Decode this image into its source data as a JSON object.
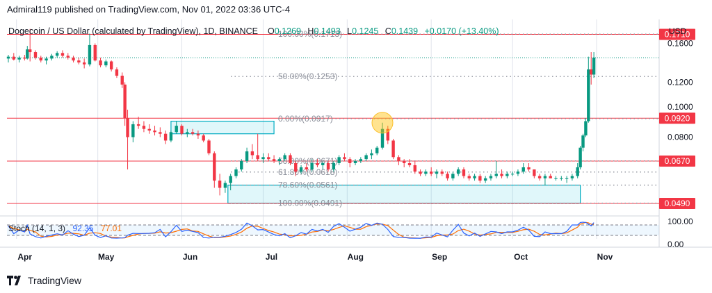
{
  "publisher": "Admiral119 published on TradingView.com, Nov 01, 2022 03:36 UTC-4",
  "footer": {
    "brand": "TradingView",
    "logo_icon": "tradingview-logo-icon"
  },
  "chart_data": {
    "type": "candlestick",
    "title": "Dogecoin / US Dollar (calculated by TradingView), 1D, BINANCE",
    "ohlc": {
      "o_label": "O",
      "o": "0.1269",
      "h_label": "H",
      "h": "0.1493",
      "l_label": "L",
      "l": "0.1245",
      "c_label": "C",
      "c": "0.1439",
      "change": "+0.0170 (+13.40%)"
    },
    "y_axis": {
      "unit": "USD",
      "scale": "log",
      "range": [
        0.049,
        0.175
      ],
      "ticks": [
        "0.1600",
        "0.1200",
        "0.1000",
        "0.0800"
      ]
    },
    "x_axis": {
      "ticks": [
        "Apr",
        "May",
        "Jun",
        "Jul",
        "Aug",
        "Sep",
        "Oct",
        "Nov"
      ]
    },
    "price_levels": [
      {
        "label": "0.1710",
        "value": 0.171,
        "color": "#f23645"
      },
      {
        "label": "0.0920",
        "value": 0.092,
        "color": "#f23645"
      },
      {
        "label": "0.0670",
        "value": 0.067,
        "color": "#f23645"
      },
      {
        "label": "0.0490",
        "value": 0.049,
        "color": "#f23645"
      }
    ],
    "fibonacci": [
      {
        "label": "100.00%(0.1713)",
        "value": 0.1713
      },
      {
        "label": "50.00%(0.1253)",
        "value": 0.1253
      },
      {
        "label": "0.00%(0.0917)",
        "value": 0.0917
      },
      {
        "label": "50.00%(0.0671)",
        "value": 0.0671
      },
      {
        "label": "61.80%(0.0618)",
        "value": 0.0618
      },
      {
        "label": "78.60%(0.0561)",
        "value": 0.0561
      },
      {
        "label": "100.00%(0.0491)",
        "value": 0.0491
      }
    ],
    "zones": [
      {
        "name": "supply-zone",
        "from": "2022-05-28",
        "to": "2022-07-05",
        "low": 0.082,
        "high": 0.09
      },
      {
        "name": "demand-zone",
        "from": "2022-06-18",
        "to": "2022-10-26",
        "low": 0.0491,
        "high": 0.0561
      }
    ],
    "highlight": {
      "date": "2022-08-14",
      "value": 0.089
    },
    "candles": [
      [
        "2022-03-29",
        0.143,
        0.147,
        0.139,
        0.145
      ],
      [
        "2022-03-31",
        0.145,
        0.149,
        0.141,
        0.142
      ],
      [
        "2022-04-02",
        0.142,
        0.146,
        0.139,
        0.144
      ],
      [
        "2022-04-04",
        0.144,
        0.147,
        0.141,
        0.143
      ],
      [
        "2022-04-05",
        0.143,
        0.157,
        0.142,
        0.153
      ],
      [
        "2022-04-06",
        0.153,
        0.178,
        0.14,
        0.15
      ],
      [
        "2022-04-08",
        0.15,
        0.152,
        0.142,
        0.144
      ],
      [
        "2022-04-10",
        0.144,
        0.146,
        0.139,
        0.141
      ],
      [
        "2022-04-12",
        0.141,
        0.145,
        0.137,
        0.143
      ],
      [
        "2022-04-14",
        0.143,
        0.148,
        0.141,
        0.146
      ],
      [
        "2022-04-16",
        0.146,
        0.151,
        0.144,
        0.149
      ],
      [
        "2022-04-18",
        0.149,
        0.152,
        0.144,
        0.146
      ],
      [
        "2022-04-20",
        0.146,
        0.149,
        0.142,
        0.144
      ],
      [
        "2022-04-22",
        0.144,
        0.146,
        0.139,
        0.141
      ],
      [
        "2022-04-24",
        0.141,
        0.144,
        0.137,
        0.139
      ],
      [
        "2022-04-26",
        0.139,
        0.143,
        0.133,
        0.137
      ],
      [
        "2022-04-28",
        0.137,
        0.172,
        0.135,
        0.158
      ],
      [
        "2022-04-30",
        0.158,
        0.16,
        0.14,
        0.141
      ],
      [
        "2022-05-02",
        0.141,
        0.144,
        0.134,
        0.136
      ],
      [
        "2022-05-04",
        0.136,
        0.142,
        0.134,
        0.14
      ],
      [
        "2022-05-06",
        0.14,
        0.141,
        0.13,
        0.132
      ],
      [
        "2022-05-08",
        0.132,
        0.134,
        0.124,
        0.126
      ],
      [
        "2022-05-10",
        0.126,
        0.129,
        0.115,
        0.118
      ],
      [
        "2022-05-11",
        0.118,
        0.12,
        0.087,
        0.092
      ],
      [
        "2022-05-12",
        0.092,
        0.098,
        0.063,
        0.08
      ],
      [
        "2022-05-14",
        0.08,
        0.09,
        0.077,
        0.088
      ],
      [
        "2022-05-16",
        0.088,
        0.093,
        0.085,
        0.087
      ],
      [
        "2022-05-18",
        0.087,
        0.09,
        0.083,
        0.085
      ],
      [
        "2022-05-20",
        0.085,
        0.088,
        0.082,
        0.084
      ],
      [
        "2022-05-22",
        0.084,
        0.087,
        0.081,
        0.083
      ],
      [
        "2022-05-24",
        0.083,
        0.086,
        0.08,
        0.082
      ],
      [
        "2022-05-26",
        0.082,
        0.084,
        0.076,
        0.078
      ],
      [
        "2022-05-28",
        0.078,
        0.084,
        0.077,
        0.083
      ],
      [
        "2022-05-30",
        0.083,
        0.09,
        0.082,
        0.087
      ],
      [
        "2022-06-01",
        0.087,
        0.088,
        0.081,
        0.082
      ],
      [
        "2022-06-03",
        0.082,
        0.085,
        0.08,
        0.083
      ],
      [
        "2022-06-05",
        0.083,
        0.085,
        0.081,
        0.082
      ],
      [
        "2022-06-07",
        0.082,
        0.084,
        0.079,
        0.081
      ],
      [
        "2022-06-09",
        0.081,
        0.082,
        0.077,
        0.078
      ],
      [
        "2022-06-11",
        0.078,
        0.079,
        0.07,
        0.071
      ],
      [
        "2022-06-13",
        0.071,
        0.072,
        0.055,
        0.058
      ],
      [
        "2022-06-15",
        0.058,
        0.061,
        0.052,
        0.055
      ],
      [
        "2022-06-17",
        0.055,
        0.058,
        0.053,
        0.057
      ],
      [
        "2022-06-19",
        0.057,
        0.061,
        0.054,
        0.06
      ],
      [
        "2022-06-21",
        0.06,
        0.064,
        0.059,
        0.063
      ],
      [
        "2022-06-23",
        0.063,
        0.068,
        0.062,
        0.067
      ],
      [
        "2022-06-25",
        0.067,
        0.074,
        0.066,
        0.072
      ],
      [
        "2022-06-27",
        0.072,
        0.076,
        0.068,
        0.07
      ],
      [
        "2022-06-29",
        0.07,
        0.082,
        0.067,
        0.068
      ],
      [
        "2022-07-01",
        0.068,
        0.071,
        0.066,
        0.069
      ],
      [
        "2022-07-03",
        0.069,
        0.071,
        0.067,
        0.068
      ],
      [
        "2022-07-05",
        0.068,
        0.07,
        0.066,
        0.067
      ],
      [
        "2022-07-07",
        0.067,
        0.069,
        0.065,
        0.068
      ],
      [
        "2022-07-09",
        0.068,
        0.071,
        0.067,
        0.07
      ],
      [
        "2022-07-11",
        0.07,
        0.071,
        0.065,
        0.066
      ],
      [
        "2022-07-13",
        0.066,
        0.067,
        0.06,
        0.062
      ],
      [
        "2022-07-15",
        0.062,
        0.065,
        0.061,
        0.064
      ],
      [
        "2022-07-17",
        0.064,
        0.066,
        0.062,
        0.063
      ],
      [
        "2022-07-19",
        0.063,
        0.068,
        0.062,
        0.066
      ],
      [
        "2022-07-21",
        0.066,
        0.068,
        0.064,
        0.065
      ],
      [
        "2022-07-23",
        0.065,
        0.067,
        0.063,
        0.066
      ],
      [
        "2022-07-25",
        0.066,
        0.067,
        0.062,
        0.063
      ],
      [
        "2022-07-27",
        0.063,
        0.067,
        0.062,
        0.066
      ],
      [
        "2022-07-29",
        0.066,
        0.07,
        0.065,
        0.069
      ],
      [
        "2022-07-31",
        0.069,
        0.071,
        0.067,
        0.068
      ],
      [
        "2022-08-02",
        0.068,
        0.069,
        0.064,
        0.066
      ],
      [
        "2022-08-04",
        0.066,
        0.068,
        0.065,
        0.067
      ],
      [
        "2022-08-06",
        0.067,
        0.069,
        0.066,
        0.068
      ],
      [
        "2022-08-08",
        0.068,
        0.071,
        0.067,
        0.07
      ],
      [
        "2022-08-10",
        0.07,
        0.073,
        0.068,
        0.071
      ],
      [
        "2022-08-12",
        0.071,
        0.075,
        0.07,
        0.074
      ],
      [
        "2022-08-14",
        0.074,
        0.089,
        0.073,
        0.085
      ],
      [
        "2022-08-16",
        0.085,
        0.087,
        0.076,
        0.078
      ],
      [
        "2022-08-18",
        0.078,
        0.079,
        0.068,
        0.069
      ],
      [
        "2022-08-20",
        0.069,
        0.07,
        0.065,
        0.067
      ],
      [
        "2022-08-22",
        0.067,
        0.068,
        0.064,
        0.066
      ],
      [
        "2022-08-24",
        0.066,
        0.068,
        0.064,
        0.065
      ],
      [
        "2022-08-26",
        0.065,
        0.067,
        0.061,
        0.062
      ],
      [
        "2022-08-28",
        0.062,
        0.063,
        0.06,
        0.061
      ],
      [
        "2022-08-30",
        0.061,
        0.063,
        0.06,
        0.062
      ],
      [
        "2022-09-01",
        0.062,
        0.064,
        0.06,
        0.061
      ],
      [
        "2022-09-03",
        0.061,
        0.063,
        0.059,
        0.062
      ],
      [
        "2022-09-05",
        0.062,
        0.063,
        0.06,
        0.061
      ],
      [
        "2022-09-07",
        0.061,
        0.062,
        0.058,
        0.059
      ],
      [
        "2022-09-09",
        0.059,
        0.062,
        0.058,
        0.061
      ],
      [
        "2022-09-11",
        0.061,
        0.064,
        0.06,
        0.063
      ],
      [
        "2022-09-13",
        0.063,
        0.064,
        0.059,
        0.06
      ],
      [
        "2022-09-15",
        0.06,
        0.061,
        0.058,
        0.059
      ],
      [
        "2022-09-17",
        0.059,
        0.061,
        0.058,
        0.06
      ],
      [
        "2022-09-19",
        0.06,
        0.061,
        0.057,
        0.058
      ],
      [
        "2022-09-21",
        0.058,
        0.06,
        0.057,
        0.059
      ],
      [
        "2022-09-23",
        0.059,
        0.061,
        0.058,
        0.06
      ],
      [
        "2022-09-25",
        0.06,
        0.067,
        0.059,
        0.061
      ],
      [
        "2022-09-27",
        0.061,
        0.063,
        0.059,
        0.06
      ],
      [
        "2022-09-29",
        0.06,
        0.062,
        0.059,
        0.061
      ],
      [
        "2022-10-01",
        0.061,
        0.062,
        0.06,
        0.061
      ],
      [
        "2022-10-03",
        0.061,
        0.063,
        0.06,
        0.062
      ],
      [
        "2022-10-05",
        0.062,
        0.066,
        0.061,
        0.064
      ],
      [
        "2022-10-07",
        0.064,
        0.066,
        0.062,
        0.063
      ],
      [
        "2022-10-09",
        0.063,
        0.063,
        0.059,
        0.06
      ],
      [
        "2022-10-11",
        0.06,
        0.061,
        0.058,
        0.059
      ],
      [
        "2022-10-13",
        0.059,
        0.061,
        0.056,
        0.06
      ],
      [
        "2022-10-15",
        0.06,
        0.061,
        0.059,
        0.059
      ],
      [
        "2022-10-17",
        0.059,
        0.06,
        0.058,
        0.059
      ],
      [
        "2022-10-19",
        0.059,
        0.06,
        0.058,
        0.059
      ],
      [
        "2022-10-21",
        0.059,
        0.06,
        0.057,
        0.059
      ],
      [
        "2022-10-23",
        0.059,
        0.061,
        0.058,
        0.06
      ],
      [
        "2022-10-25",
        0.06,
        0.066,
        0.059,
        0.064
      ],
      [
        "2022-10-26",
        0.064,
        0.075,
        0.063,
        0.074
      ],
      [
        "2022-10-27",
        0.074,
        0.082,
        0.072,
        0.081
      ],
      [
        "2022-10-28",
        0.081,
        0.092,
        0.08,
        0.09
      ],
      [
        "2022-10-29",
        0.09,
        0.145,
        0.089,
        0.132
      ],
      [
        "2022-10-30",
        0.132,
        0.15,
        0.118,
        0.127
      ],
      [
        "2022-10-31",
        0.127,
        0.15,
        0.124,
        0.144
      ]
    ],
    "current_price": 0.1439,
    "stoch": {
      "label": "Stoch (14, 1, 3)",
      "k_value": "92.35",
      "d_value": "77.01",
      "k_color": "#2962ff",
      "d_color": "#ff6d00",
      "range": [
        0,
        100
      ],
      "ticks": [
        "100.00",
        "0.00"
      ],
      "bands": [
        80,
        20
      ]
    }
  }
}
